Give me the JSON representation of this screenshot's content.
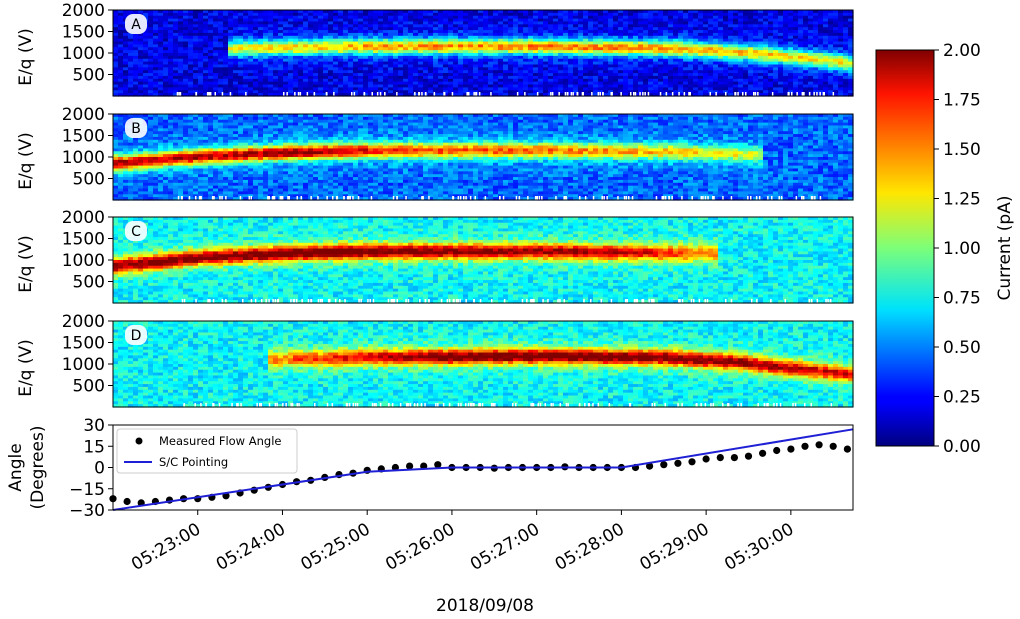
{
  "chart_data": {
    "type": "heatmap",
    "xlabel": "2018/09/08",
    "x_ticks": [
      "05:23:00",
      "05:24:00",
      "05:25:00",
      "05:26:00",
      "05:27:00",
      "05:28:00",
      "05:29:00",
      "05:30:00"
    ],
    "x_range": [
      "05:22:00",
      "05:30:44"
    ],
    "panels": [
      {
        "label": "A",
        "ylabel": "E/q (V)",
        "ylim": [
          0,
          2000
        ],
        "y_ticks": [
          "500",
          "1000",
          "1500",
          "2000"
        ],
        "y_tick_values": [
          500,
          1000,
          1500,
          2000
        ],
        "band": {
          "start": "05:23:20",
          "end": "05:30:44",
          "energy": [
            [
              "05:23:20",
              1100
            ],
            [
              "05:25:00",
              1150
            ],
            [
              "05:27:00",
              1150
            ],
            [
              "05:28:40",
              1100
            ],
            [
              "05:29:30",
              1000
            ],
            [
              "05:30:20",
              850
            ],
            [
              "05:30:44",
              750
            ]
          ],
          "peak_current": [
            [
              "05:23:20",
              1.05
            ],
            [
              "05:25:00",
              1.25
            ],
            [
              "05:27:30",
              1.35
            ],
            [
              "05:29:00",
              1.25
            ],
            [
              "05:30:44",
              1.05
            ]
          ]
        },
        "background_current": 0.2
      },
      {
        "label": "B",
        "ylabel": "E/q (V)",
        "ylim": [
          0,
          2000
        ],
        "y_ticks": [
          "500",
          "1000",
          "1500",
          "2000"
        ],
        "y_tick_values": [
          500,
          1000,
          1500,
          2000
        ],
        "band": {
          "start": "05:22:00",
          "end": "05:29:40",
          "energy": [
            [
              "05:22:00",
              850
            ],
            [
              "05:23:00",
              1000
            ],
            [
              "05:24:00",
              1100
            ],
            [
              "05:25:00",
              1150
            ],
            [
              "05:27:00",
              1150
            ],
            [
              "05:28:30",
              1120
            ],
            [
              "05:29:40",
              1050
            ]
          ],
          "peak_current": [
            [
              "05:22:00",
              1.7
            ],
            [
              "05:23:30",
              1.75
            ],
            [
              "05:24:20",
              1.8
            ],
            [
              "05:25:30",
              1.45
            ],
            [
              "05:27:00",
              1.4
            ],
            [
              "05:28:30",
              1.2
            ],
            [
              "05:29:40",
              1.0
            ]
          ]
        },
        "background_current": 0.45
      },
      {
        "label": "C",
        "ylabel": "E/q (V)",
        "ylim": [
          0,
          2000
        ],
        "y_ticks": [
          "500",
          "1000",
          "1500",
          "2000"
        ],
        "y_tick_values": [
          500,
          1000,
          1500,
          2000
        ],
        "band": {
          "start": "05:22:00",
          "end": "05:29:10",
          "energy": [
            [
              "05:22:00",
              850
            ],
            [
              "05:23:00",
              1050
            ],
            [
              "05:24:00",
              1150
            ],
            [
              "05:25:00",
              1200
            ],
            [
              "05:27:00",
              1200
            ],
            [
              "05:29:10",
              1150
            ]
          ],
          "peak_current": [
            [
              "05:22:00",
              1.85
            ],
            [
              "05:23:30",
              1.9
            ],
            [
              "05:24:30",
              2.0
            ],
            [
              "05:26:00",
              1.85
            ],
            [
              "05:28:00",
              1.75
            ],
            [
              "05:29:10",
              1.3
            ]
          ]
        },
        "background_current": 0.75
      },
      {
        "label": "D",
        "ylabel": "E/q (V)",
        "ylim": [
          0,
          2000
        ],
        "y_ticks": [
          "500",
          "1000",
          "1500",
          "2000"
        ],
        "y_tick_values": [
          500,
          1000,
          1500,
          2000
        ],
        "band": {
          "start": "05:23:50",
          "end": "05:30:44",
          "energy": [
            [
              "05:23:50",
              1100
            ],
            [
              "05:25:00",
              1150
            ],
            [
              "05:27:00",
              1180
            ],
            [
              "05:28:30",
              1150
            ],
            [
              "05:29:20",
              1050
            ],
            [
              "05:30:00",
              900
            ],
            [
              "05:30:44",
              750
            ]
          ],
          "peak_current": [
            [
              "05:23:50",
              1.3
            ],
            [
              "05:25:00",
              1.7
            ],
            [
              "05:26:00",
              1.95
            ],
            [
              "05:28:00",
              1.95
            ],
            [
              "05:29:30",
              1.85
            ],
            [
              "05:30:44",
              1.6
            ]
          ]
        },
        "background_current": 0.75
      }
    ],
    "angle_panel": {
      "ylabel": "Angle\n(Degrees)",
      "ylabel_lines": [
        "Angle",
        "(Degrees)"
      ],
      "ylim": [
        -30,
        30
      ],
      "y_ticks": [
        "30",
        "15",
        "0",
        "−15",
        "−30"
      ],
      "y_tick_values": [
        30,
        15,
        0,
        -15,
        -30
      ],
      "series": [
        {
          "name": "Measured Flow Angle",
          "type": "scatter",
          "color": "#000000",
          "x": [
            "05:22:00",
            "05:22:10",
            "05:22:20",
            "05:22:30",
            "05:22:40",
            "05:22:50",
            "05:23:00",
            "05:23:10",
            "05:23:20",
            "05:23:30",
            "05:23:40",
            "05:23:50",
            "05:24:00",
            "05:24:10",
            "05:24:20",
            "05:24:30",
            "05:24:40",
            "05:24:50",
            "05:25:00",
            "05:25:10",
            "05:25:20",
            "05:25:30",
            "05:25:40",
            "05:25:50",
            "05:26:00",
            "05:26:10",
            "05:26:20",
            "05:26:30",
            "05:26:40",
            "05:26:50",
            "05:27:00",
            "05:27:10",
            "05:27:20",
            "05:27:30",
            "05:27:40",
            "05:27:50",
            "05:28:00",
            "05:28:10",
            "05:28:20",
            "05:28:30",
            "05:28:40",
            "05:28:50",
            "05:29:00",
            "05:29:10",
            "05:29:20",
            "05:29:30",
            "05:29:40",
            "05:29:50",
            "05:30:00",
            "05:30:10",
            "05:30:20",
            "05:30:30",
            "05:30:40"
          ],
          "y": [
            -22,
            -24,
            -25,
            -24,
            -23,
            -22,
            -22,
            -21,
            -20,
            -18,
            -16,
            -14,
            -12,
            -10,
            -9,
            -7,
            -5,
            -4,
            -2,
            -1,
            0,
            1,
            1,
            2,
            0,
            0,
            0,
            -0.5,
            0,
            0,
            0,
            0,
            0.5,
            0,
            0,
            0,
            0,
            0,
            1,
            2,
            3,
            4,
            6,
            7,
            7,
            8,
            10,
            12,
            13,
            15,
            16,
            15,
            13
          ]
        },
        {
          "name": "S/C Pointing",
          "type": "line",
          "color": "#1f1fd6",
          "x": [
            "05:22:00",
            "05:25:00",
            "05:26:00",
            "05:28:00",
            "05:30:44"
          ],
          "y": [
            -30,
            -3,
            0,
            0,
            27
          ]
        }
      ],
      "legend": "top-left"
    },
    "colorbar": {
      "label": "Current (pA)",
      "range": [
        0,
        2
      ],
      "ticks": [
        "0.00",
        "0.25",
        "0.50",
        "0.75",
        "1.00",
        "1.25",
        "1.50",
        "1.75",
        "2.00"
      ],
      "tick_values": [
        0,
        0.25,
        0.5,
        0.75,
        1.0,
        1.25,
        1.5,
        1.75,
        2.0
      ],
      "colormap": "jet"
    }
  }
}
